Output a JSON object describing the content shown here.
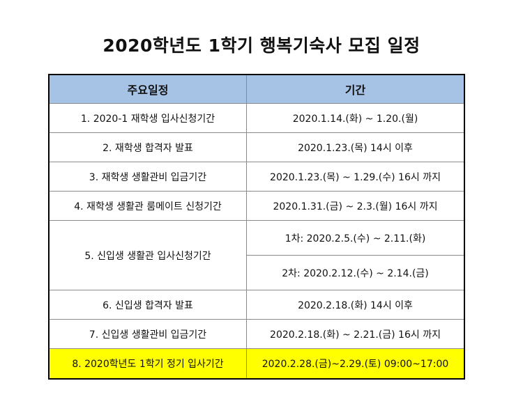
{
  "title": "2020학년도 1학기 행복기숙사 모집 일정",
  "headers": {
    "item": "주요일정",
    "period": "기간"
  },
  "rows": [
    {
      "item": "1. 2020-1 재학생 입사신청기간",
      "periods": [
        "2020.1.14.(화) ~ 1.20.(월)"
      ]
    },
    {
      "item": "2. 재학생 합격자 발표",
      "periods": [
        "2020.1.23.(목) 14시 이후"
      ]
    },
    {
      "item": "3. 재학생 생활관비 입금기간",
      "periods": [
        "2020.1.23.(목) ~ 1.29.(수) 16시 까지"
      ]
    },
    {
      "item": "4. 재학생 생활관 룸메이트 신청기간",
      "periods": [
        "2020.1.31.(금) ~ 2.3.(월) 16시 까지"
      ]
    },
    {
      "item": "5. 신입생 생활관 입사신청기간",
      "periods": [
        "1차: 2020.2.5.(수) ~ 2.11.(화)",
        "2차: 2020.2.12.(수) ~ 2.14.(금)"
      ]
    },
    {
      "item": "6. 신입생 합격자 발표",
      "periods": [
        "2020.2.18.(화) 14시 이후"
      ]
    },
    {
      "item": "7. 신입생 생활관비 입금기간",
      "periods": [
        "2020.2.18.(화) ~ 2.21.(금) 16시 까지"
      ]
    },
    {
      "item": "8. 2020학년도 1학기 정기 입사기간",
      "periods": [
        "2020.2.28.(금)~2.29.(토) 09:00~17:00"
      ]
    }
  ],
  "colors": {
    "header_bg": "#a6c3e6",
    "highlight_bg": "#ffff00"
  }
}
